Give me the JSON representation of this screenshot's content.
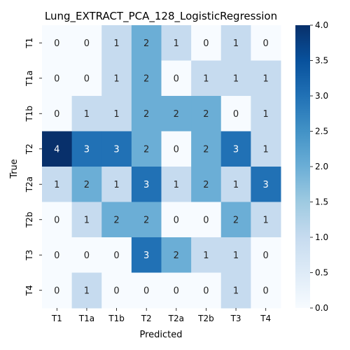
{
  "chart_data": {
    "type": "heatmap",
    "title": "Lung_EXTRACT_PCA_128_LogisticRegression",
    "xlabel": "Predicted",
    "ylabel": "True",
    "x_categories": [
      "T1",
      "T1a",
      "T1b",
      "T2",
      "T2a",
      "T2b",
      "T3",
      "T4"
    ],
    "y_categories": [
      "T1",
      "T1a",
      "T1b",
      "T2",
      "T2a",
      "T2b",
      "T3",
      "T4"
    ],
    "values": [
      [
        0,
        0,
        1,
        2,
        1,
        0,
        1,
        0
      ],
      [
        0,
        0,
        1,
        2,
        0,
        1,
        1,
        1
      ],
      [
        0,
        1,
        1,
        2,
        2,
        2,
        0,
        1
      ],
      [
        4,
        3,
        3,
        2,
        0,
        2,
        3,
        1
      ],
      [
        1,
        2,
        1,
        3,
        1,
        2,
        1,
        3
      ],
      [
        0,
        1,
        2,
        2,
        0,
        0,
        2,
        1
      ],
      [
        0,
        0,
        0,
        3,
        2,
        1,
        1,
        0
      ],
      [
        0,
        1,
        0,
        0,
        0,
        0,
        1,
        0
      ]
    ],
    "vmin": 0,
    "vmax": 4,
    "colormap": "Blues",
    "colorbar_ticks": [
      "0.0",
      "0.5",
      "1.0",
      "1.5",
      "2.0",
      "2.5",
      "3.0",
      "3.5",
      "4.0"
    ],
    "grid": false
  }
}
